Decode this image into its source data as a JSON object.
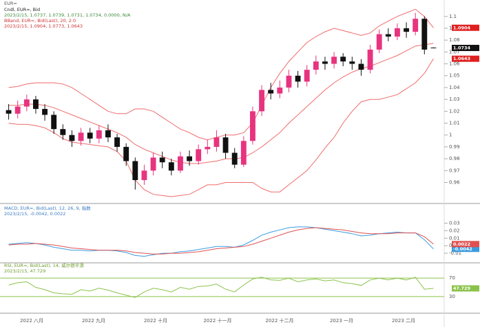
{
  "header": "EUR=",
  "x_axis": {
    "labels": [
      "2022 八月",
      "2022 九月",
      "2022 十月",
      "2022 十一月",
      "2022 十二月",
      "2023 一月",
      "2023 二月"
    ]
  },
  "chart_data": [
    {
      "type": "candlestick",
      "title": "Cndl, EUR=, Bid",
      "info": "2023/2/15, 1.0737, 1.0739, 1.0731, 1.0734, 0.0000, N/A",
      "up_color": "#e8337f",
      "down_color": "#111111",
      "open": [
        1.021,
        1.018,
        1.024,
        1.03,
        1.022,
        1.017,
        1.005,
        1.0,
        0.995,
        1.002,
        0.997,
        1.004,
        0.998,
        0.99,
        0.978,
        0.962,
        0.97,
        0.981,
        0.977,
        0.97,
        0.982,
        0.978,
        0.988,
        0.99,
        0.998,
        0.985,
        0.975,
        0.995,
        1.02,
        1.038,
        1.035,
        1.04,
        1.05,
        1.045,
        1.055,
        1.062,
        1.06,
        1.066,
        1.062,
        1.06,
        1.055,
        1.072,
        1.085,
        1.083,
        1.09,
        1.087,
        1.098,
        1.0737
      ],
      "high": [
        1.026,
        1.029,
        1.034,
        1.033,
        1.026,
        1.02,
        1.009,
        1.004,
        1.006,
        1.006,
        1.008,
        1.009,
        1.001,
        0.993,
        0.981,
        0.975,
        0.985,
        0.986,
        0.98,
        0.986,
        0.987,
        0.992,
        0.996,
        1.004,
        1.001,
        0.989,
        0.999,
        1.024,
        1.042,
        1.044,
        1.046,
        1.055,
        1.054,
        1.059,
        1.067,
        1.066,
        1.07,
        1.069,
        1.066,
        1.064,
        1.076,
        1.089,
        1.09,
        1.094,
        1.095,
        1.103,
        1.1,
        1.0739
      ],
      "low": [
        1.013,
        1.014,
        1.02,
        1.018,
        1.012,
        1.001,
        0.996,
        0.99,
        0.991,
        0.993,
        0.993,
        0.994,
        0.986,
        0.974,
        0.954,
        0.958,
        0.966,
        0.972,
        0.966,
        0.968,
        0.974,
        0.975,
        0.984,
        0.986,
        0.98,
        0.972,
        0.973,
        0.992,
        1.016,
        1.03,
        1.031,
        1.036,
        1.04,
        1.041,
        1.051,
        1.055,
        1.056,
        1.058,
        1.055,
        1.05,
        1.052,
        1.069,
        1.079,
        1.08,
        1.082,
        1.084,
        1.068,
        1.0731
      ],
      "close": [
        1.018,
        1.024,
        1.03,
        1.022,
        1.017,
        1.005,
        1.0,
        0.995,
        1.002,
        0.997,
        1.004,
        0.998,
        0.99,
        0.978,
        0.962,
        0.97,
        0.981,
        0.977,
        0.97,
        0.982,
        0.978,
        0.988,
        0.99,
        0.998,
        0.985,
        0.975,
        0.995,
        1.02,
        1.038,
        1.035,
        1.04,
        1.05,
        1.045,
        1.055,
        1.062,
        1.06,
        1.066,
        1.062,
        1.06,
        1.055,
        1.072,
        1.085,
        1.083,
        1.09,
        1.087,
        1.098,
        1.072,
        1.0734
      ],
      "indicator": {
        "name": "BBand, EUR=, Bid(Last), 20, 2.0",
        "info": "2023/2/15, 1.0904, 1.0773, 1.0643",
        "color": "#f06a6a",
        "upper": [
          1.04,
          1.041,
          1.043,
          1.044,
          1.044,
          1.044,
          1.043,
          1.04,
          1.035,
          1.03,
          1.025,
          1.02,
          1.018,
          1.018,
          1.022,
          1.022,
          1.02,
          1.015,
          1.01,
          1.005,
          1.002,
          0.998,
          0.996,
          0.998,
          1.0,
          1.0,
          1.002,
          1.01,
          1.025,
          1.04,
          1.052,
          1.062,
          1.07,
          1.078,
          1.083,
          1.087,
          1.09,
          1.088,
          1.086,
          1.084,
          1.086,
          1.092,
          1.096,
          1.1,
          1.103,
          1.106,
          1.1,
          1.0904
        ],
        "middle": [
          1.025,
          1.025,
          1.026,
          1.026,
          1.025,
          1.023,
          1.02,
          1.017,
          1.014,
          1.011,
          1.008,
          1.005,
          1.002,
          0.998,
          0.992,
          0.988,
          0.985,
          0.982,
          0.979,
          0.977,
          0.976,
          0.976,
          0.977,
          0.978,
          0.98,
          0.98,
          0.981,
          0.985,
          0.99,
          0.996,
          1.002,
          1.01,
          1.017,
          1.024,
          1.031,
          1.038,
          1.044,
          1.049,
          1.053,
          1.056,
          1.058,
          1.061,
          1.064,
          1.067,
          1.071,
          1.075,
          1.076,
          1.0773
        ],
        "lower": [
          1.01,
          1.009,
          1.009,
          1.008,
          1.006,
          1.002,
          0.997,
          0.994,
          0.993,
          0.992,
          0.991,
          0.99,
          0.986,
          0.978,
          0.962,
          0.954,
          0.95,
          0.949,
          0.948,
          0.949,
          0.95,
          0.954,
          0.958,
          0.958,
          0.96,
          0.96,
          0.96,
          0.96,
          0.955,
          0.952,
          0.952,
          0.958,
          0.964,
          0.97,
          0.979,
          0.989,
          0.998,
          1.01,
          1.02,
          1.028,
          1.03,
          1.03,
          1.032,
          1.034,
          1.039,
          1.044,
          1.052,
          1.0643
        ]
      },
      "ylim": [
        0.944,
        1.108
      ],
      "yticks": [
        0.96,
        0.97,
        0.98,
        0.99,
        1,
        1.01,
        1.02,
        1.03,
        1.04,
        1.05,
        1.06,
        1.07,
        1.08,
        1.09,
        1.1
      ]
    },
    {
      "type": "line",
      "title": "MACD, EUR=, Bid(Last), 12, 26, 9, 指数",
      "info": "2023/2/15, -0.0042, 0.0022",
      "series": [
        {
          "color": "#3a9be0",
          "values": [
            0.002,
            0.003,
            0.004,
            0.003,
            0.001,
            -0.002,
            -0.004,
            -0.006,
            -0.006,
            -0.007,
            -0.006,
            -0.006,
            -0.007,
            -0.009,
            -0.013,
            -0.014,
            -0.012,
            -0.01,
            -0.01,
            -0.008,
            -0.007,
            -0.005,
            -0.003,
            -0.001,
            -0.001,
            -0.002,
            0.001,
            0.007,
            0.014,
            0.018,
            0.021,
            0.024,
            0.025,
            0.025,
            0.024,
            0.022,
            0.02,
            0.018,
            0.016,
            0.013,
            0.014,
            0.016,
            0.017,
            0.018,
            0.017,
            0.017,
            0.008,
            -0.0042
          ]
        },
        {
          "color": "#e05050",
          "values": [
            0.001,
            0.002,
            0.002,
            0.003,
            0.002,
            0.001,
            -0.001,
            -0.003,
            -0.004,
            -0.005,
            -0.006,
            -0.006,
            -0.006,
            -0.007,
            -0.009,
            -0.01,
            -0.011,
            -0.011,
            -0.01,
            -0.01,
            -0.009,
            -0.008,
            -0.006,
            -0.004,
            -0.003,
            -0.002,
            -0.001,
            0.002,
            0.006,
            0.01,
            0.014,
            0.018,
            0.021,
            0.023,
            0.024,
            0.023,
            0.022,
            0.021,
            0.019,
            0.017,
            0.016,
            0.016,
            0.016,
            0.017,
            0.017,
            0.017,
            0.012,
            0.0022
          ]
        }
      ],
      "ylim": [
        -0.02,
        0.035
      ],
      "yticks": [
        -0.01,
        0,
        0.01,
        0.02,
        0.03
      ]
    },
    {
      "type": "line",
      "title": "RSI, EUR=, Bid(Last), 14, 威尔德平滑",
      "info": "2023/2/15, 47.729",
      "series": [
        {
          "color": "#8bc34a",
          "values": [
            55,
            60,
            62,
            50,
            45,
            38,
            36,
            35,
            45,
            42,
            48,
            44,
            38,
            33,
            28,
            40,
            48,
            45,
            40,
            50,
            46,
            52,
            53,
            57,
            46,
            40,
            55,
            68,
            72,
            66,
            65,
            70,
            62,
            66,
            68,
            64,
            66,
            60,
            58,
            54,
            66,
            70,
            66,
            70,
            66,
            72,
            46,
            47.729
          ]
        }
      ],
      "ylim": [
        0,
        100
      ],
      "yticks": [
        30,
        70
      ]
    }
  ]
}
